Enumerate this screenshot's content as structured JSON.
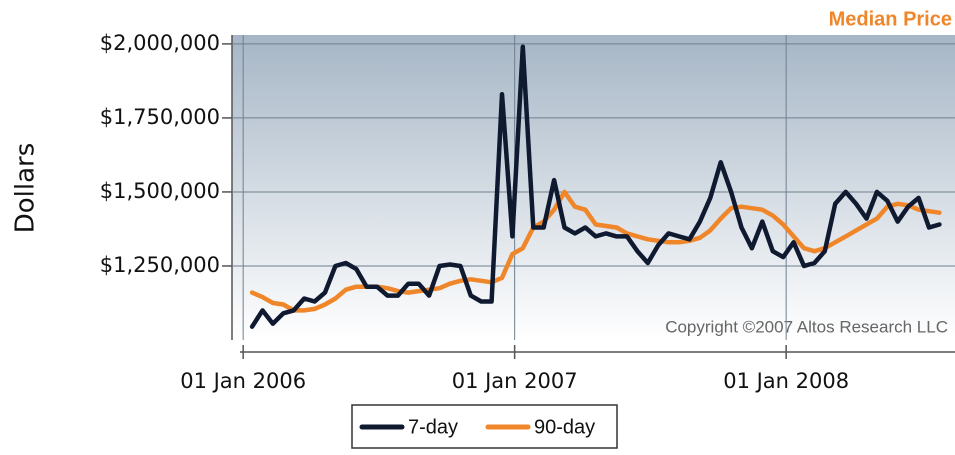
{
  "chart_data": {
    "type": "line",
    "title": "Median Price",
    "y_label": "Dollars",
    "annotation": "Copyright ©2007 Altos Research LLC",
    "legend": "bottom",
    "grid": true,
    "xlim": [
      "2005-12-17",
      "2008-08-15"
    ],
    "xticks": [
      {
        "value": "2006-01-01",
        "label": "01 Jan 2006"
      },
      {
        "value": "2007-01-01",
        "label": "01 Jan 2007"
      },
      {
        "value": "2008-01-01",
        "label": "01 Jan 2008"
      }
    ],
    "ylim": [
      1000000,
      2030000
    ],
    "yticks": [
      {
        "value": 1250000,
        "label": "$1,250,000"
      },
      {
        "value": 1500000,
        "label": "$1,500,000"
      },
      {
        "value": 1750000,
        "label": "$1,750,000"
      },
      {
        "value": 2000000,
        "label": "$2,000,000"
      }
    ],
    "x": [
      "2006-01-13",
      "2006-01-27",
      "2006-02-10",
      "2006-02-24",
      "2006-03-10",
      "2006-03-24",
      "2006-04-07",
      "2006-04-21",
      "2006-05-05",
      "2006-05-19",
      "2006-06-02",
      "2006-06-16",
      "2006-06-30",
      "2006-07-14",
      "2006-07-28",
      "2006-08-11",
      "2006-08-25",
      "2006-09-08",
      "2006-09-22",
      "2006-10-06",
      "2006-10-20",
      "2006-11-03",
      "2006-11-17",
      "2006-12-01",
      "2006-12-15",
      "2006-12-29",
      "2007-01-12",
      "2007-01-26",
      "2007-02-09",
      "2007-02-23",
      "2007-03-09",
      "2007-03-23",
      "2007-04-06",
      "2007-04-20",
      "2007-05-04",
      "2007-05-18",
      "2007-06-01",
      "2007-06-15",
      "2007-06-29",
      "2007-07-13",
      "2007-07-27",
      "2007-08-10",
      "2007-08-24",
      "2007-09-07",
      "2007-09-21",
      "2007-10-05",
      "2007-10-19",
      "2007-11-02",
      "2007-11-16",
      "2007-11-30",
      "2007-12-14",
      "2007-12-28",
      "2008-01-11",
      "2008-01-25",
      "2008-02-08",
      "2008-02-22",
      "2008-03-07",
      "2008-03-21",
      "2008-04-04",
      "2008-04-18",
      "2008-05-02",
      "2008-05-16",
      "2008-05-30",
      "2008-06-13",
      "2008-06-27",
      "2008-07-11",
      "2008-07-25"
    ],
    "series": [
      {
        "name": "7-day",
        "color": "#0f1a30",
        "values": [
          1045000,
          1100000,
          1055000,
          1090000,
          1100000,
          1140000,
          1130000,
          1160000,
          1250000,
          1260000,
          1240000,
          1180000,
          1180000,
          1150000,
          1150000,
          1190000,
          1190000,
          1150000,
          1250000,
          1255000,
          1250000,
          1150000,
          1130000,
          1130000,
          1830000,
          1350000,
          1990000,
          1380000,
          1380000,
          1540000,
          1380000,
          1360000,
          1380000,
          1350000,
          1360000,
          1350000,
          1350000,
          1300000,
          1260000,
          1320000,
          1360000,
          1350000,
          1340000,
          1400000,
          1480000,
          1600000,
          1500000,
          1380000,
          1310000,
          1400000,
          1300000,
          1280000,
          1330000,
          1250000,
          1260000,
          1300000,
          1460000,
          1500000,
          1460000,
          1410000,
          1500000,
          1470000,
          1400000,
          1450000,
          1480000,
          1380000,
          1390000
        ]
      },
      {
        "name": "90-day",
        "color": "#f0862a",
        "values": [
          1160000,
          1145000,
          1125000,
          1120000,
          1100000,
          1100000,
          1105000,
          1120000,
          1140000,
          1170000,
          1180000,
          1180000,
          1180000,
          1175000,
          1165000,
          1160000,
          1165000,
          1170000,
          1175000,
          1190000,
          1200000,
          1205000,
          1200000,
          1195000,
          1210000,
          1290000,
          1310000,
          1380000,
          1400000,
          1440000,
          1500000,
          1450000,
          1440000,
          1390000,
          1385000,
          1380000,
          1360000,
          1350000,
          1340000,
          1335000,
          1330000,
          1330000,
          1335000,
          1345000,
          1370000,
          1410000,
          1445000,
          1450000,
          1445000,
          1440000,
          1420000,
          1390000,
          1350000,
          1310000,
          1300000,
          1310000,
          1330000,
          1350000,
          1370000,
          1390000,
          1410000,
          1450000,
          1460000,
          1455000,
          1440000,
          1435000,
          1430000
        ]
      }
    ]
  }
}
